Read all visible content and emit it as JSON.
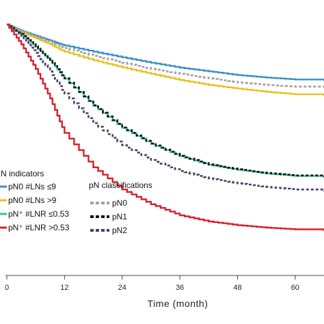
{
  "chart_data": {
    "type": "line",
    "xlabel": "Time (month)",
    "ylabel": "",
    "xlim": [
      0,
      66
    ],
    "ylim": [
      0,
      1
    ],
    "x_ticks": [
      0,
      12,
      24,
      36,
      48,
      60
    ],
    "x_tick_labels": [
      "0",
      "12",
      "24",
      "36",
      "48",
      "60"
    ],
    "grid": false,
    "legends": [
      {
        "title": "N indicators",
        "placement": "left-middle",
        "entries": [
          "pN0 #LNs ≤9",
          "pN0 #LNs >9",
          "pN⁺ #LNR ≤0.53",
          "pN⁺ #LNR >0.53"
        ]
      },
      {
        "title": "pN classifications",
        "placement": "center-middle",
        "entries": [
          "pN0",
          "pN1",
          "pN2"
        ]
      }
    ],
    "series": [
      {
        "key": "s_pn0_le9",
        "legend_text": "pN0 #LNs ≤9",
        "color": "#3a8fc7",
        "style": "solid",
        "step": true,
        "x": [
          0,
          3,
          6,
          9,
          12,
          18,
          24,
          30,
          36,
          42,
          48,
          54,
          60,
          66
        ],
        "y": [
          1.0,
          0.975,
          0.955,
          0.935,
          0.915,
          0.89,
          0.867,
          0.845,
          0.825,
          0.81,
          0.795,
          0.785,
          0.777,
          0.772
        ]
      },
      {
        "key": "s_pn0_gt9",
        "legend_text": "pN0 #LNs >9",
        "color": "#e8c020",
        "style": "solid",
        "step": true,
        "x": [
          0,
          3,
          6,
          9,
          12,
          18,
          24,
          30,
          36,
          42,
          48,
          54,
          60,
          66
        ],
        "y": [
          1.0,
          0.97,
          0.945,
          0.92,
          0.89,
          0.855,
          0.826,
          0.8,
          0.775,
          0.755,
          0.74,
          0.727,
          0.717,
          0.71
        ]
      },
      {
        "key": "s_pn0",
        "legend_text": "pN0",
        "color": "#a0a0a0",
        "style": "dashed",
        "step": true,
        "x": [
          0,
          3,
          6,
          9,
          12,
          18,
          24,
          30,
          36,
          42,
          48,
          54,
          60,
          66
        ],
        "y": [
          1.0,
          0.975,
          0.952,
          0.93,
          0.905,
          0.873,
          0.845,
          0.82,
          0.8,
          0.782,
          0.765,
          0.755,
          0.748,
          0.743
        ]
      },
      {
        "key": "s_lnr_le053",
        "legend_text": "pN⁺ #LNR ≤0.53",
        "color": "#3cbf9a",
        "style": "solid",
        "step": true,
        "x": [
          0,
          3,
          6,
          9,
          12,
          18,
          24,
          30,
          36,
          42,
          48,
          54,
          60,
          66
        ],
        "y": [
          1.0,
          0.96,
          0.91,
          0.855,
          0.78,
          0.67,
          0.58,
          0.515,
          0.465,
          0.43,
          0.41,
          0.395,
          0.385,
          0.378
        ]
      },
      {
        "key": "s_pn1",
        "legend_text": "pN1",
        "color": "#111111",
        "style": "dashed",
        "step": true,
        "x": [
          0,
          3,
          6,
          9,
          12,
          18,
          24,
          30,
          36,
          42,
          48,
          54,
          60,
          66
        ],
        "y": [
          1.0,
          0.962,
          0.912,
          0.857,
          0.782,
          0.672,
          0.582,
          0.517,
          0.467,
          0.432,
          0.412,
          0.397,
          0.387,
          0.38
        ]
      },
      {
        "key": "s_pn2",
        "legend_text": "pN2",
        "color": "#4a3f6b",
        "style": "dashed",
        "step": true,
        "x": [
          0,
          3,
          6,
          9,
          12,
          18,
          24,
          30,
          36,
          42,
          48,
          54,
          60,
          66
        ],
        "y": [
          1.0,
          0.95,
          0.885,
          0.81,
          0.72,
          0.6,
          0.51,
          0.45,
          0.405,
          0.375,
          0.355,
          0.34,
          0.33,
          0.322
        ]
      },
      {
        "key": "s_lnr_gt053",
        "legend_text": "pN⁺ #LNR >0.53",
        "color": "#d81e2a",
        "style": "solid",
        "step": true,
        "x": [
          0,
          3,
          6,
          9,
          12,
          18,
          24,
          30,
          36,
          42,
          48,
          54,
          60,
          66
        ],
        "y": [
          1.0,
          0.92,
          0.82,
          0.7,
          0.56,
          0.42,
          0.33,
          0.27,
          0.225,
          0.2,
          0.185,
          0.175,
          0.168,
          0.162
        ]
      }
    ]
  }
}
